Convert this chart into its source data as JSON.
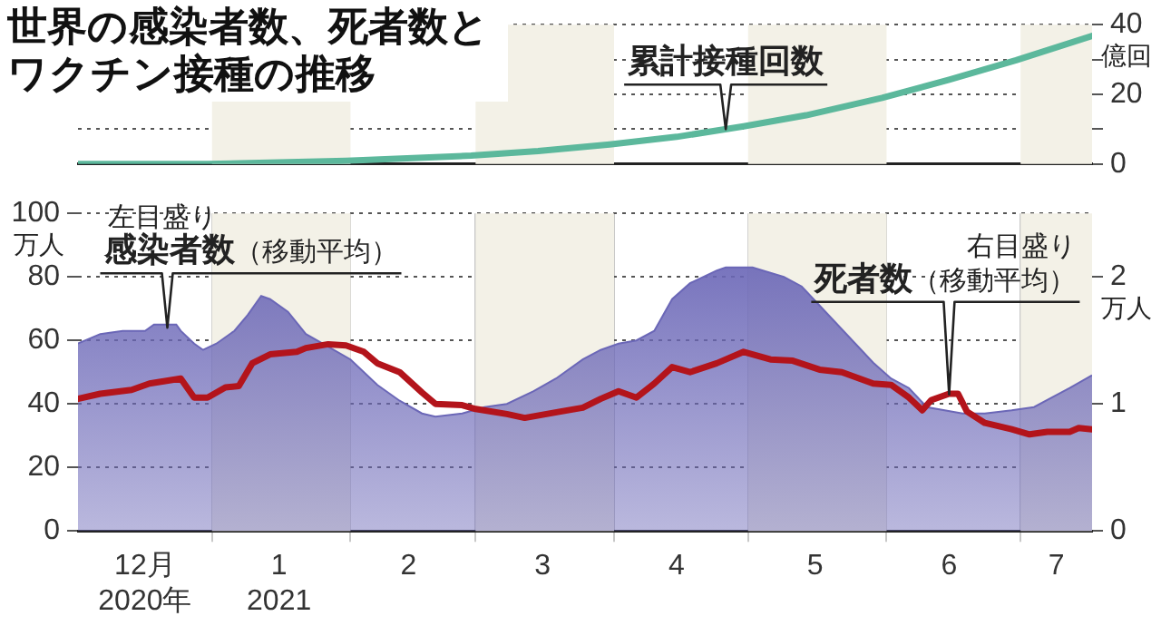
{
  "chart_data": [
    {
      "type": "line",
      "title": "世界の感染者数、死者数とワクチン接種の推移",
      "ylabel": "億回",
      "xlim": [
        "2020-12-02",
        "2021-07-17"
      ],
      "ylim": [
        0,
        40
      ],
      "yticks": [
        0,
        {
          "value": 10,
          "label": null
        },
        20,
        {
          "value": 30,
          "label": null
        },
        40
      ],
      "tick_labels": "y",
      "grid": "y",
      "bands": [
        {
          "axis": "x",
          "from": "2021-01-01",
          "to": "2021-02-01",
          "color": "#f3f1e7"
        },
        {
          "axis": "x",
          "from": "2021-03-01",
          "to": "2021-04-01",
          "color": "#f3f1e7"
        },
        {
          "axis": "x",
          "from": "2021-05-01",
          "to": "2021-06-01",
          "color": "#f3f1e7"
        },
        {
          "axis": "x",
          "from": "2021-07-01",
          "to": "2021-07-17",
          "color": "#f3f1e7"
        }
      ],
      "annotations": [
        {
          "text": "累計接種回数",
          "x": "2021-04-26",
          "y": 10
        }
      ],
      "series": [
        {
          "color": "#5cb89c",
          "x": [
            "2020-12-02",
            "2020-12-31",
            "2021-01-31",
            "2021-02-28",
            "2021-03-15",
            "2021-03-31",
            "2021-04-15",
            "2021-04-30",
            "2021-05-14",
            "2021-05-31",
            "2021-06-15",
            "2021-06-30",
            "2021-07-17"
          ],
          "values": [
            0,
            0,
            0.9,
            2.4,
            3.7,
            5.6,
            7.8,
            10.8,
            14,
            19,
            24.2,
            29.8,
            36.8
          ]
        }
      ]
    },
    {
      "type": "area",
      "ylabel": "万人",
      "y2label": "万人",
      "xlim": [
        "2020-12-02",
        "2021-07-17"
      ],
      "xticks": [
        {
          "value": "2020-12-17",
          "label": "12月\n2020年"
        },
        {
          "value": "2021-01-01",
          "label": null
        },
        {
          "value": "2021-01-16",
          "label": "1\n2021"
        },
        {
          "value": "2021-02-01",
          "label": null
        },
        {
          "value": "2021-02-14",
          "label": "2"
        },
        {
          "value": "2021-03-01",
          "label": null
        },
        {
          "value": "2021-03-16",
          "label": "3"
        },
        {
          "value": "2021-04-01",
          "label": null
        },
        {
          "value": "2021-04-15",
          "label": "4"
        },
        {
          "value": "2021-05-01",
          "label": null
        },
        {
          "value": "2021-05-16",
          "label": "5"
        },
        {
          "value": "2021-06-01",
          "label": null
        },
        {
          "value": "2021-06-15",
          "label": "6"
        },
        {
          "value": "2021-07-01",
          "label": null
        },
        {
          "value": "2021-07-09",
          "label": "7"
        }
      ],
      "ylim": [
        0,
        100
      ],
      "yticks": [
        0,
        20,
        40,
        60,
        80,
        100
      ],
      "y2lim": [
        0,
        2.5
      ],
      "y2ticks": [
        0,
        1,
        2
      ],
      "grid": true,
      "bands": [
        {
          "axis": "x",
          "from": "2021-01-01",
          "to": "2021-02-01",
          "color": "#f3f1e7"
        },
        {
          "axis": "x",
          "from": "2021-03-01",
          "to": "2021-04-01",
          "color": "#f3f1e7"
        },
        {
          "axis": "x",
          "from": "2021-05-01",
          "to": "2021-06-01",
          "color": "#f3f1e7"
        },
        {
          "axis": "x",
          "from": "2021-07-01",
          "to": "2021-07-17",
          "color": "#f3f1e7"
        }
      ],
      "annotations": [
        "左目盛り",
        {
          "text": "感染者数（移動平均）",
          "x": "2020-12-22",
          "y": 64
        },
        "右目盛り",
        {
          "text": "死者数（移動平均）",
          "x": "2021-06-15",
          "y": 43
        }
      ],
      "series": [
        {
          "color": "#6b67b7",
          "x": [
            "2020-12-02",
            "2020-12-07",
            "2020-12-12",
            "2020-12-17",
            "2020-12-19",
            "2020-12-24",
            "2020-12-25",
            "2020-12-28",
            "2020-12-30",
            "2021-01-02",
            "2021-01-06",
            "2021-01-09",
            "2021-01-12",
            "2021-01-14",
            "2021-01-18",
            "2021-01-22",
            "2021-01-27",
            "2021-02-01",
            "2021-02-07",
            "2021-02-12",
            "2021-02-17",
            "2021-02-20",
            "2021-02-26",
            "2021-03-03",
            "2021-03-08",
            "2021-03-14",
            "2021-03-19",
            "2021-03-25",
            "2021-03-29",
            "2021-04-02",
            "2021-04-06",
            "2021-04-10",
            "2021-04-14",
            "2021-04-18",
            "2021-04-24",
            "2021-04-26",
            "2021-05-02",
            "2021-05-09",
            "2021-05-13",
            "2021-05-17",
            "2021-05-21",
            "2021-05-25",
            "2021-05-29",
            "2021-06-02",
            "2021-06-06",
            "2021-06-10",
            "2021-06-14",
            "2021-06-18",
            "2021-06-23",
            "2021-06-29",
            "2021-07-04",
            "2021-07-08",
            "2021-07-12",
            "2021-07-17"
          ],
          "values": [
            59,
            62,
            63,
            63,
            65,
            65,
            63,
            59,
            57,
            59,
            63,
            68,
            74,
            73,
            69,
            62,
            58,
            54,
            46,
            41,
            37,
            36,
            37,
            39,
            40,
            44,
            48,
            54,
            57,
            59,
            60,
            63,
            73,
            78,
            82,
            83,
            83,
            80,
            77,
            71,
            65,
            59,
            53,
            48,
            45,
            39,
            38,
            37,
            37,
            38,
            39,
            42,
            45,
            49
          ]
        },
        {
          "type": "line",
          "axis": "y2",
          "color": "#b3141b",
          "x": [
            "2020-12-02",
            "2020-12-07",
            "2020-12-14",
            "2020-12-18",
            "2020-12-25",
            "2020-12-28",
            "2020-12-31",
            "2021-01-04",
            "2021-01-07",
            "2021-01-10",
            "2021-01-14",
            "2021-01-20",
            "2021-01-22",
            "2021-01-27",
            "2021-01-31",
            "2021-02-04",
            "2021-02-07",
            "2021-02-12",
            "2021-02-17",
            "2021-02-20",
            "2021-02-26",
            "2021-03-01",
            "2021-03-08",
            "2021-03-12",
            "2021-03-20",
            "2021-03-25",
            "2021-03-29",
            "2021-04-02",
            "2021-04-06",
            "2021-04-10",
            "2021-04-14",
            "2021-04-18",
            "2021-04-24",
            "2021-04-30",
            "2021-05-06",
            "2021-05-11",
            "2021-05-17",
            "2021-05-22",
            "2021-05-29",
            "2021-06-02",
            "2021-06-06",
            "2021-06-09",
            "2021-06-11",
            "2021-06-15",
            "2021-06-17",
            "2021-06-19",
            "2021-06-23",
            "2021-06-29",
            "2021-07-03",
            "2021-07-07",
            "2021-07-12",
            "2021-07-14",
            "2021-07-17"
          ],
          "values": [
            1.04,
            1.08,
            1.11,
            1.16,
            1.2,
            1.05,
            1.05,
            1.13,
            1.14,
            1.32,
            1.39,
            1.41,
            1.44,
            1.47,
            1.46,
            1.41,
            1.32,
            1.25,
            1.09,
            1.0,
            0.99,
            0.96,
            0.92,
            0.89,
            0.94,
            0.97,
            1.04,
            1.1,
            1.05,
            1.16,
            1.29,
            1.25,
            1.32,
            1.41,
            1.35,
            1.34,
            1.27,
            1.25,
            1.16,
            1.15,
            1.05,
            0.95,
            1.03,
            1.08,
            1.08,
            0.94,
            0.85,
            0.8,
            0.76,
            0.78,
            0.78,
            0.81,
            0.8
          ]
        }
      ]
    }
  ]
}
